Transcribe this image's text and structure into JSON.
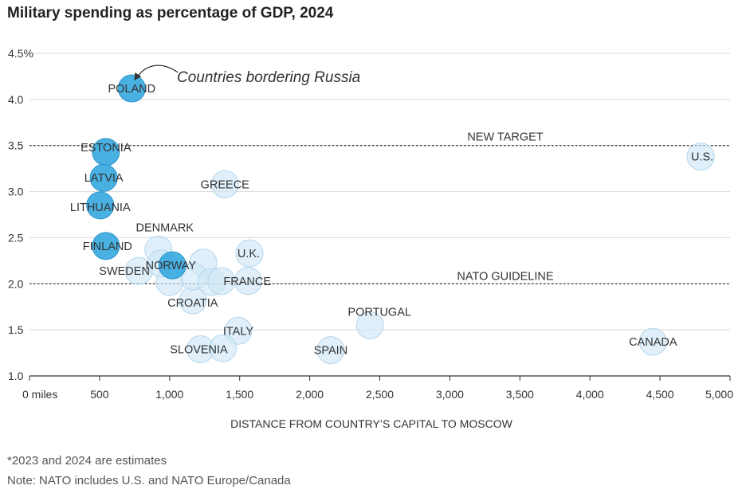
{
  "title": "Military spending as percentage of GDP, 2024",
  "footnotes": {
    "line1": "*2023 and 2024 are estimates",
    "line2": "Note: NATO includes U.S. and NATO Europe/Canada"
  },
  "colors": {
    "bordering": "#3aa9df",
    "other": "#cfe6f6",
    "other_stroke": "#b3d6ee",
    "grid": "#d9d9d9",
    "reference": "#333333"
  },
  "chart_data": {
    "type": "scatter",
    "title": "Military spending as percentage of GDP, 2024",
    "xlabel": "DISTANCE FROM COUNTRY’S CAPITAL TO MOSCOW",
    "ylabel": "",
    "xlim": [
      0,
      5000
    ],
    "ylim": [
      1.0,
      4.5
    ],
    "x_ticks": [
      {
        "value": 0,
        "label": "0 miles"
      },
      {
        "value": 500,
        "label": "500"
      },
      {
        "value": 1000,
        "label": "1,000"
      },
      {
        "value": 1500,
        "label": "1,500"
      },
      {
        "value": 2000,
        "label": "2,000"
      },
      {
        "value": 2500,
        "label": "2,500"
      },
      {
        "value": 3000,
        "label": "3,000"
      },
      {
        "value": 3500,
        "label": "3,500"
      },
      {
        "value": 4000,
        "label": "4,000"
      },
      {
        "value": 4500,
        "label": "4,500"
      },
      {
        "value": 5000,
        "label": "5,000"
      }
    ],
    "y_ticks": [
      {
        "value": 1.0,
        "label": "1.0"
      },
      {
        "value": 1.5,
        "label": "1.5"
      },
      {
        "value": 2.0,
        "label": "2.0"
      },
      {
        "value": 2.5,
        "label": "2.5"
      },
      {
        "value": 3.0,
        "label": "3.0"
      },
      {
        "value": 3.5,
        "label": "3.5"
      },
      {
        "value": 4.0,
        "label": "4.0"
      },
      {
        "value": 4.5,
        "label": "4.5%"
      }
    ],
    "grid": true,
    "reference_lines": [
      {
        "y": 3.5,
        "label": "NEW TARGET"
      },
      {
        "y": 2.0,
        "label": "NATO GUIDELINE"
      }
    ],
    "annotation": "Countries bordering Russia",
    "points": [
      {
        "name": "POLAND",
        "x": 730,
        "y": 4.12,
        "borders_russia": true
      },
      {
        "name": "ESTONIA",
        "x": 545,
        "y": 3.43,
        "borders_russia": true
      },
      {
        "name": "LATVIA",
        "x": 530,
        "y": 3.15,
        "borders_russia": true
      },
      {
        "name": "LITHUANIA",
        "x": 505,
        "y": 2.85,
        "borders_russia": true
      },
      {
        "name": "FINLAND",
        "x": 545,
        "y": 2.41,
        "borders_russia": true
      },
      {
        "name": "NORWAY",
        "x": 1020,
        "y": 2.2,
        "borders_russia": true
      },
      {
        "name": "U.S.",
        "x": 4790,
        "y": 3.38,
        "borders_russia": false
      },
      {
        "name": "GREECE",
        "x": 1395,
        "y": 3.08,
        "borders_russia": false
      },
      {
        "name": "DENMARK",
        "x": 920,
        "y": 2.37,
        "borders_russia": false
      },
      {
        "name": "U.K.",
        "x": 1570,
        "y": 2.33,
        "borders_russia": false
      },
      {
        "name": "SWEDEN",
        "x": 780,
        "y": 2.14,
        "borders_russia": false
      },
      {
        "name": "FRANCE",
        "x": 1560,
        "y": 2.03,
        "borders_russia": false
      },
      {
        "name": "CROATIA",
        "x": 1165,
        "y": 1.82,
        "borders_russia": false
      },
      {
        "name": "ITALY",
        "x": 1490,
        "y": 1.49,
        "borders_russia": false
      },
      {
        "name": "PORTUGAL",
        "x": 2430,
        "y": 1.55,
        "borders_russia": false
      },
      {
        "name": "SLOVENIA",
        "x": 1220,
        "y": 1.29,
        "borders_russia": false
      },
      {
        "name": "SPAIN",
        "x": 2150,
        "y": 1.28,
        "borders_russia": false
      },
      {
        "name": "CANADA",
        "x": 4450,
        "y": 1.37,
        "borders_russia": false
      },
      {
        "name": "",
        "x": 1240,
        "y": 2.23,
        "borders_russia": false
      },
      {
        "name": "",
        "x": 1170,
        "y": 2.08,
        "borders_russia": false
      },
      {
        "name": "",
        "x": 1300,
        "y": 2.02,
        "borders_russia": false
      },
      {
        "name": "",
        "x": 1370,
        "y": 2.03,
        "borders_russia": false
      },
      {
        "name": "",
        "x": 1000,
        "y": 2.02,
        "borders_russia": false
      },
      {
        "name": "",
        "x": 1380,
        "y": 1.3,
        "borders_russia": false
      },
      {
        "name": "",
        "x": 940,
        "y": 2.22,
        "borders_russia": false
      }
    ]
  }
}
